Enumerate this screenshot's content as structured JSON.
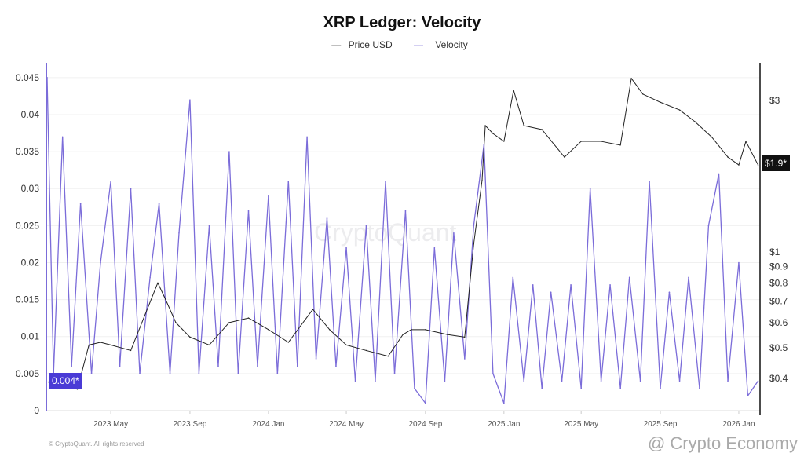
{
  "chart_data": {
    "type": "line",
    "title": "XRP Ledger: Velocity",
    "legend": [
      "Price USD",
      "Velocity"
    ],
    "legend_placement": "top",
    "grid": true,
    "colors": {
      "price": "#222222",
      "velocity": "#7b6cd9",
      "velocity_tag": "#4a3bd6",
      "price_tag": "#111111"
    },
    "x_ticks": [
      "2023 May",
      "2023 Sep",
      "2024 Jan",
      "2024 May",
      "2024 Sep",
      "2025 Jan",
      "2025 May",
      "2025 Sep",
      "2026 Jan"
    ],
    "x_tick_dates": [
      "2023-05-01",
      "2023-09-01",
      "2024-01-01",
      "2024-05-01",
      "2024-09-01",
      "2025-01-01",
      "2025-05-01",
      "2025-09-01",
      "2026-01-01"
    ],
    "xlim": [
      "2023-01-22",
      "2026-02-03"
    ],
    "left_axis": {
      "ticks": [
        "0",
        "0.005",
        "0.01",
        "0.015",
        "0.02",
        "0.025",
        "0.03",
        "0.035",
        "0.04",
        "0.045"
      ],
      "ylim": [
        0,
        0.047
      ]
    },
    "right_axis": {
      "scale": "log",
      "ticks": [
        "$0.4",
        "$0.5",
        "$0.6",
        "$0.7",
        "$0.8",
        "$0.9",
        "$1",
        "$3"
      ],
      "tick_values": [
        0.4,
        0.5,
        0.6,
        0.7,
        0.8,
        0.9,
        1,
        3
      ],
      "ylim": [
        0.317,
        3.94
      ]
    },
    "current_velocity_label": "0.004*",
    "current_velocity": 0.004,
    "current_price_label": "$1.9*",
    "current_price": 1.9,
    "series": [
      {
        "name": "Price USD",
        "axis": "right",
        "x": [
          "2023-01-24",
          "2023-02-15",
          "2023-03-10",
          "2023-03-28",
          "2023-04-15",
          "2023-05-01",
          "2023-06-01",
          "2023-07-13",
          "2023-07-25",
          "2023-08-10",
          "2023-09-01",
          "2023-10-01",
          "2023-11-01",
          "2023-12-01",
          "2024-01-01",
          "2024-02-01",
          "2024-03-10",
          "2024-04-05",
          "2024-05-01",
          "2024-06-01",
          "2024-07-05",
          "2024-07-28",
          "2024-08-10",
          "2024-09-01",
          "2024-10-05",
          "2024-11-01",
          "2024-11-15",
          "2024-11-28",
          "2024-12-03",
          "2024-12-15",
          "2025-01-01",
          "2025-01-16",
          "2025-02-01",
          "2025-03-01",
          "2025-04-05",
          "2025-05-01",
          "2025-06-01",
          "2025-07-01",
          "2025-07-18",
          "2025-08-05",
          "2025-09-01",
          "2025-10-01",
          "2025-10-25",
          "2025-11-20",
          "2025-12-15",
          "2026-01-01",
          "2026-01-12",
          "2026-01-31"
        ],
        "values": [
          0.39,
          0.38,
          0.37,
          0.51,
          0.52,
          0.51,
          0.49,
          0.8,
          0.71,
          0.6,
          0.54,
          0.51,
          0.6,
          0.62,
          0.57,
          0.52,
          0.66,
          0.57,
          0.51,
          0.49,
          0.47,
          0.55,
          0.57,
          0.57,
          0.55,
          0.54,
          1.06,
          1.68,
          2.5,
          2.36,
          2.23,
          3.23,
          2.5,
          2.43,
          1.99,
          2.23,
          2.23,
          2.17,
          3.52,
          3.14,
          2.96,
          2.8,
          2.57,
          2.3,
          1.99,
          1.88,
          2.23,
          1.88
        ]
      },
      {
        "name": "Velocity",
        "axis": "left",
        "x": [
          "2023-01-22",
          "2023-02-01",
          "2023-02-15",
          "2023-03-01",
          "2023-03-15",
          "2023-04-01",
          "2023-04-15",
          "2023-05-01",
          "2023-05-15",
          "2023-06-01",
          "2023-06-15",
          "2023-07-01",
          "2023-07-15",
          "2023-08-01",
          "2023-08-15",
          "2023-09-01",
          "2023-09-15",
          "2023-10-01",
          "2023-10-15",
          "2023-11-01",
          "2023-11-15",
          "2023-12-01",
          "2023-12-15",
          "2024-01-01",
          "2024-01-15",
          "2024-02-01",
          "2024-02-15",
          "2024-03-01",
          "2024-03-15",
          "2024-04-01",
          "2024-04-15",
          "2024-05-01",
          "2024-05-15",
          "2024-06-01",
          "2024-06-15",
          "2024-07-01",
          "2024-07-15",
          "2024-08-01",
          "2024-08-15",
          "2024-09-01",
          "2024-09-15",
          "2024-10-01",
          "2024-10-15",
          "2024-11-01",
          "2024-11-15",
          "2024-12-01",
          "2024-12-15",
          "2025-01-01",
          "2025-01-15",
          "2025-02-01",
          "2025-02-15",
          "2025-03-01",
          "2025-03-15",
          "2025-04-01",
          "2025-04-15",
          "2025-05-01",
          "2025-05-15",
          "2025-06-01",
          "2025-06-15",
          "2025-07-01",
          "2025-07-15",
          "2025-08-01",
          "2025-08-15",
          "2025-09-01",
          "2025-09-15",
          "2025-10-01",
          "2025-10-15",
          "2025-11-01",
          "2025-11-15",
          "2025-12-01",
          "2025-12-15",
          "2026-01-01",
          "2026-01-15",
          "2026-01-31"
        ],
        "values": [
          0.045,
          0.005,
          0.037,
          0.006,
          0.028,
          0.005,
          0.02,
          0.031,
          0.006,
          0.03,
          0.005,
          0.018,
          0.028,
          0.005,
          0.024,
          0.042,
          0.005,
          0.025,
          0.006,
          0.035,
          0.005,
          0.027,
          0.006,
          0.029,
          0.005,
          0.031,
          0.006,
          0.037,
          0.007,
          0.026,
          0.006,
          0.022,
          0.004,
          0.025,
          0.004,
          0.031,
          0.005,
          0.027,
          0.003,
          0.001,
          0.022,
          0.004,
          0.024,
          0.007,
          0.025,
          0.036,
          0.005,
          0.001,
          0.018,
          0.004,
          0.017,
          0.003,
          0.016,
          0.004,
          0.017,
          0.003,
          0.03,
          0.004,
          0.017,
          0.003,
          0.018,
          0.004,
          0.031,
          0.003,
          0.016,
          0.004,
          0.018,
          0.003,
          0.025,
          0.032,
          0.004,
          0.02,
          0.002,
          0.004
        ]
      }
    ]
  },
  "watermark": "CryptoQuant",
  "source_watermark": "@ Crypto Economy",
  "copyright": "© CryptoQuant. All rights reserved"
}
